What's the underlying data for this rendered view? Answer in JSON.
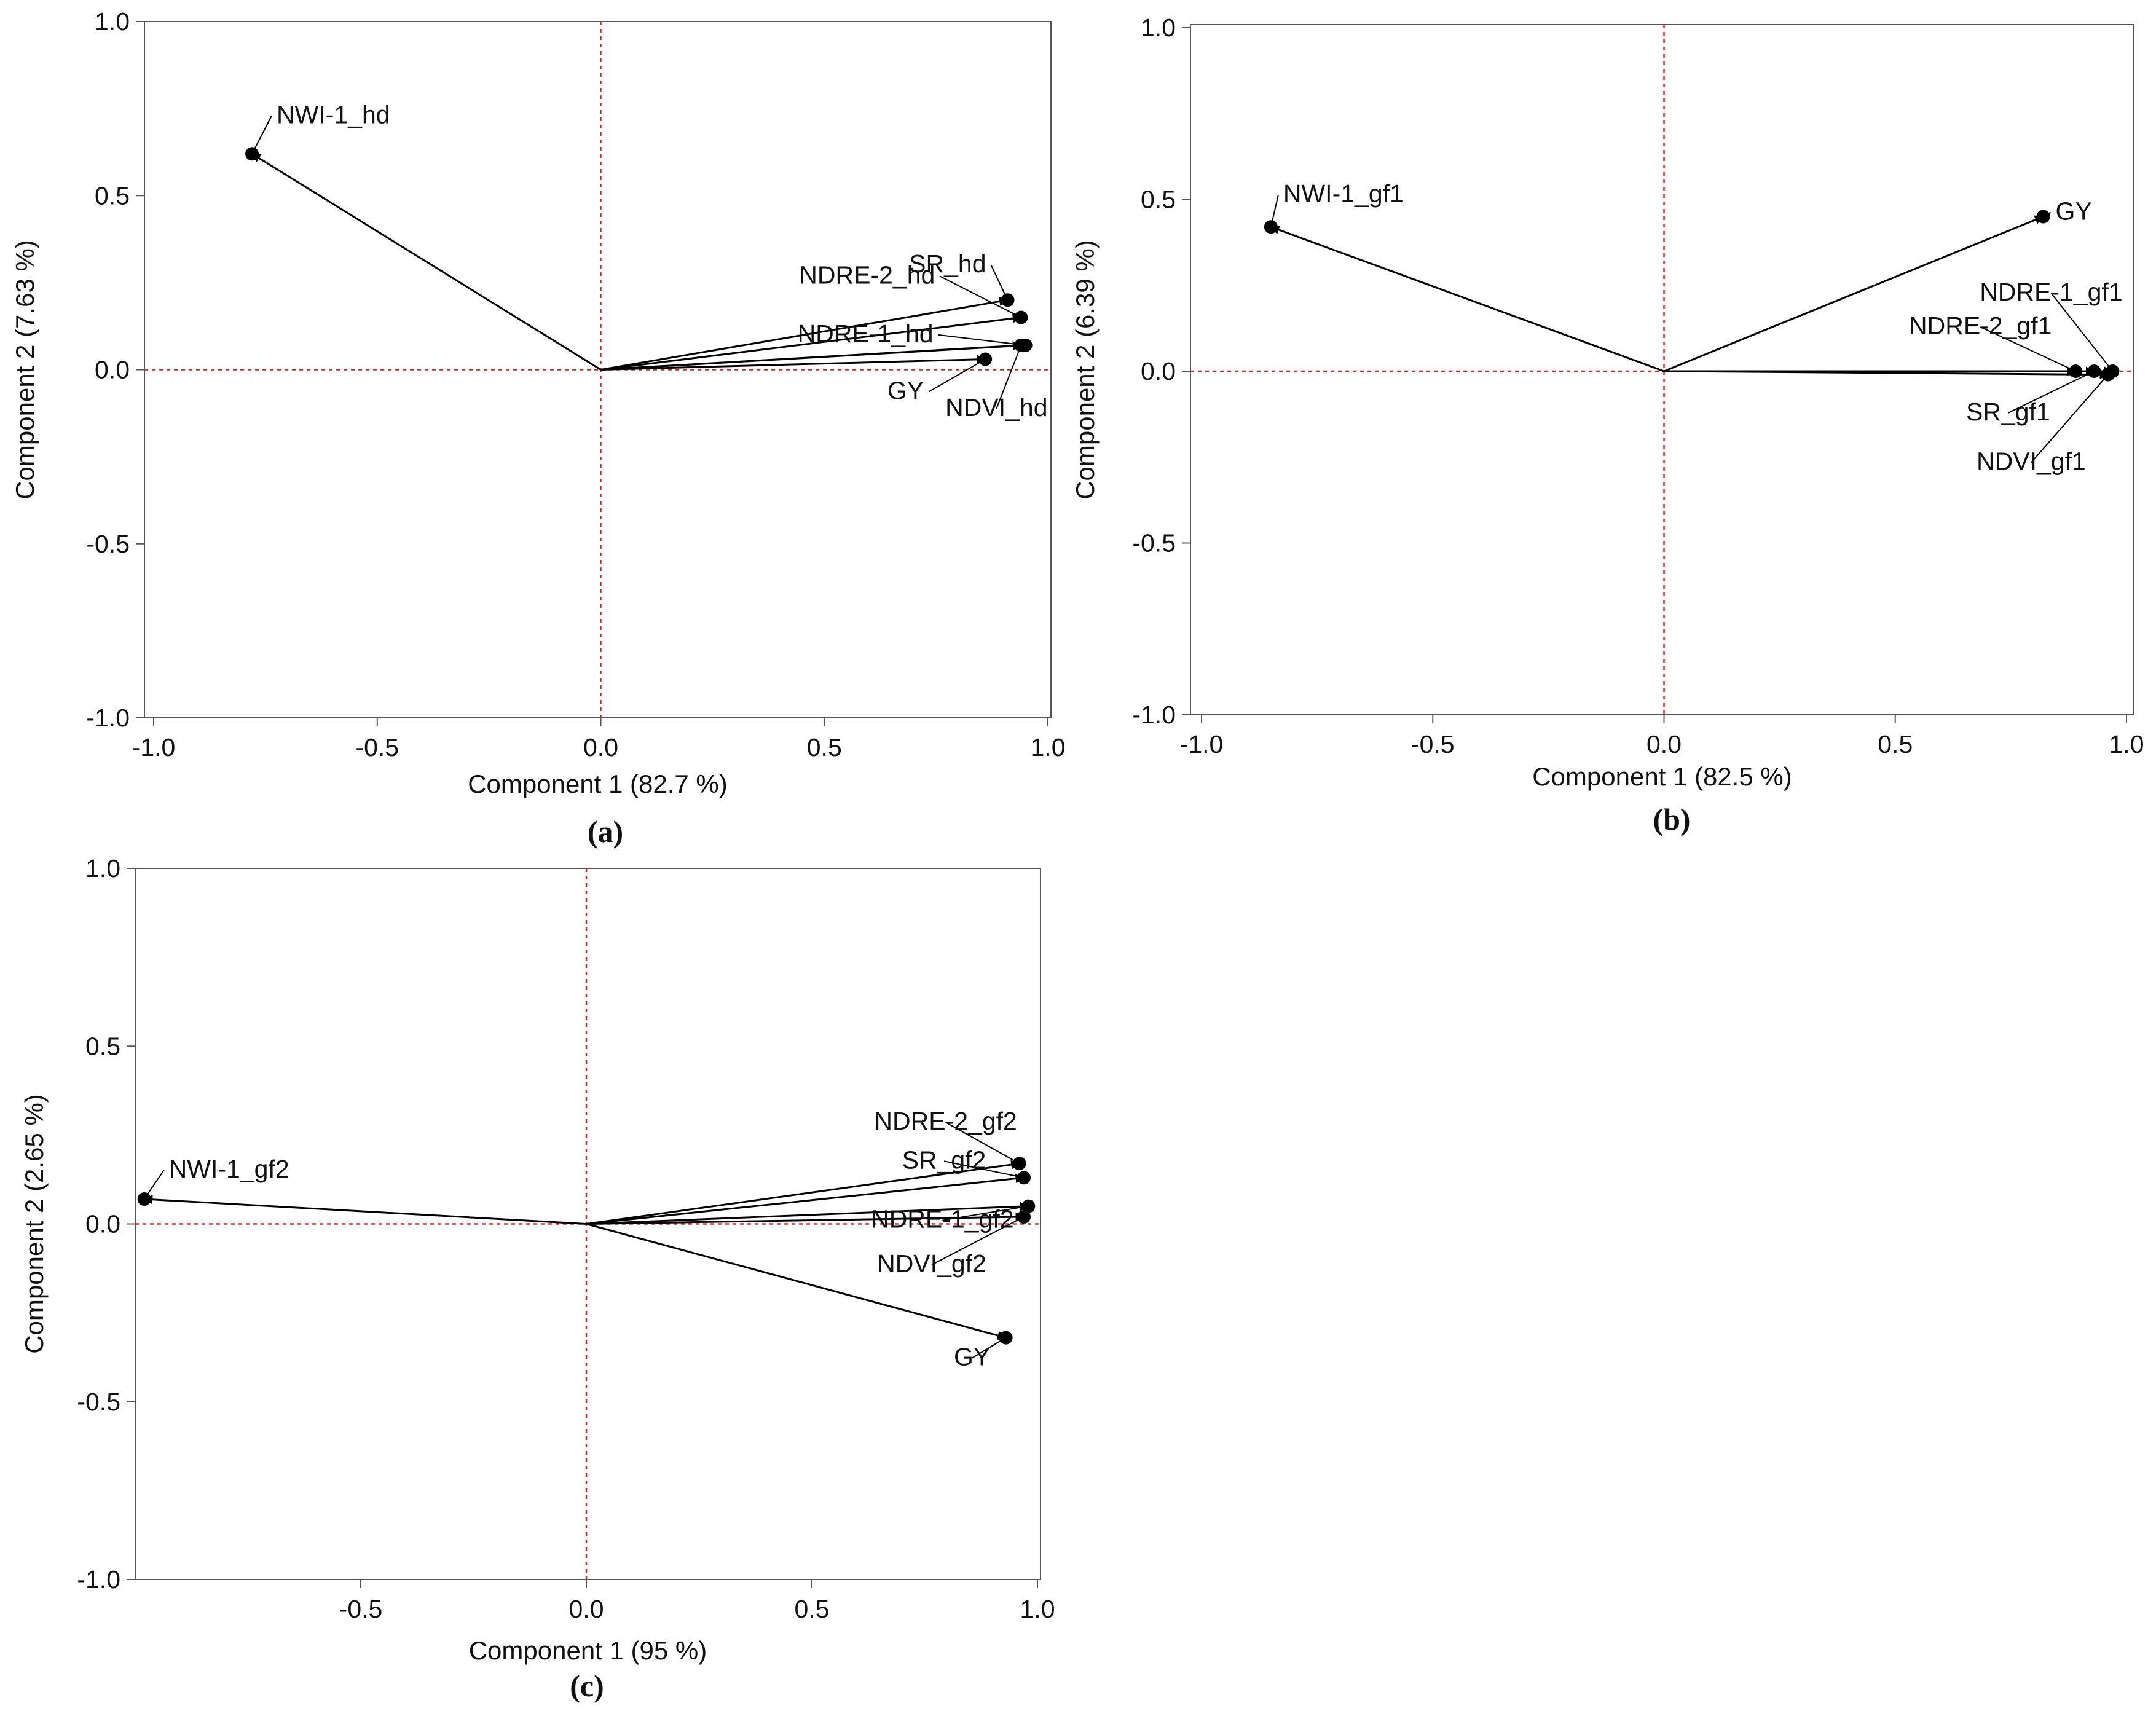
{
  "figure": {
    "panel_letters": [
      "(a)",
      "(b)",
      "(c)"
    ]
  },
  "chart_data": [
    {
      "type": "scatter",
      "subtype": "biplot-loading-vectors",
      "panel": "(a)",
      "xlabel": "Component 1  (82.7 %)",
      "ylabel": "Component 2  (7.63 %)",
      "xlim": [
        -1.0,
        1.0
      ],
      "ylim": [
        -1.0,
        1.0
      ],
      "xticks": [
        "-1.0",
        "-0.5",
        "0.0",
        "0.5",
        "1.0"
      ],
      "yticks": [
        "-1.0",
        "-0.5",
        "0.0",
        "0.5",
        "1.0"
      ],
      "reference_lines": {
        "x": 0,
        "y": 0,
        "color": "#d62728"
      },
      "grid": false,
      "vectors": [
        {
          "label": "NWI-1_hd",
          "x": -0.78,
          "y": 0.62
        },
        {
          "label": "SR_hd",
          "x": 0.91,
          "y": 0.2
        },
        {
          "label": "NDRE-2_hd",
          "x": 0.94,
          "y": 0.15
        },
        {
          "label": "NDRE-1_hd",
          "x": 0.95,
          "y": 0.07
        },
        {
          "label": "NDVI_hd",
          "x": 0.94,
          "y": 0.07
        },
        {
          "label": "GY",
          "x": 0.86,
          "y": 0.03
        }
      ]
    },
    {
      "type": "scatter",
      "subtype": "biplot-loading-vectors",
      "panel": "(b)",
      "xlabel": "Component 1  (82.5 %)",
      "ylabel": "Component 2  (6.39 %)",
      "xlim": [
        -1.0,
        1.0
      ],
      "ylim": [
        -1.0,
        1.0
      ],
      "xticks": [
        "-1.0",
        "-0.5",
        "0.0",
        "0.5",
        "1.0"
      ],
      "yticks": [
        "-1.0",
        "-0.5",
        "0.0",
        "0.5",
        "1.0"
      ],
      "reference_lines": {
        "x": 0,
        "y": 0,
        "color": "#d62728"
      },
      "grid": false,
      "vectors": [
        {
          "label": "NWI-1_gf1",
          "x": -0.85,
          "y": 0.42
        },
        {
          "label": "GY",
          "x": 0.82,
          "y": 0.45
        },
        {
          "label": "NDRE-1_gf1",
          "x": 0.97,
          "y": 0.0
        },
        {
          "label": "NDRE-2_gf1",
          "x": 0.89,
          "y": 0.0
        },
        {
          "label": "SR_gf1",
          "x": 0.93,
          "y": 0.0
        },
        {
          "label": "NDVI_gf1",
          "x": 0.96,
          "y": -0.01
        }
      ]
    },
    {
      "type": "scatter",
      "subtype": "biplot-loading-vectors",
      "panel": "(c)",
      "xlabel": "Component 1  (95 %)",
      "ylabel": "Component 2  (2.65 %)",
      "xlim": [
        -1.0,
        1.0
      ],
      "ylim": [
        -1.0,
        1.0
      ],
      "xticks": [
        "-0.5",
        "0.0",
        "0.5",
        "1.0"
      ],
      "yticks": [
        "-1.0",
        "-0.5",
        "0.0",
        "0.5",
        "1.0"
      ],
      "reference_lines": {
        "x": 0,
        "y": 0,
        "color": "#d62728"
      },
      "grid": false,
      "vectors": [
        {
          "label": "NWI-1_gf2",
          "x": -0.98,
          "y": 0.07
        },
        {
          "label": "NDRE-2_gf2",
          "x": 0.96,
          "y": 0.17
        },
        {
          "label": "SR_gf2",
          "x": 0.97,
          "y": 0.13
        },
        {
          "label": "NDRE-1_gf2",
          "x": 0.98,
          "y": 0.05
        },
        {
          "label": "NDVI_gf2",
          "x": 0.97,
          "y": 0.02
        },
        {
          "label": "GY",
          "x": 0.93,
          "y": -0.32
        }
      ]
    }
  ]
}
